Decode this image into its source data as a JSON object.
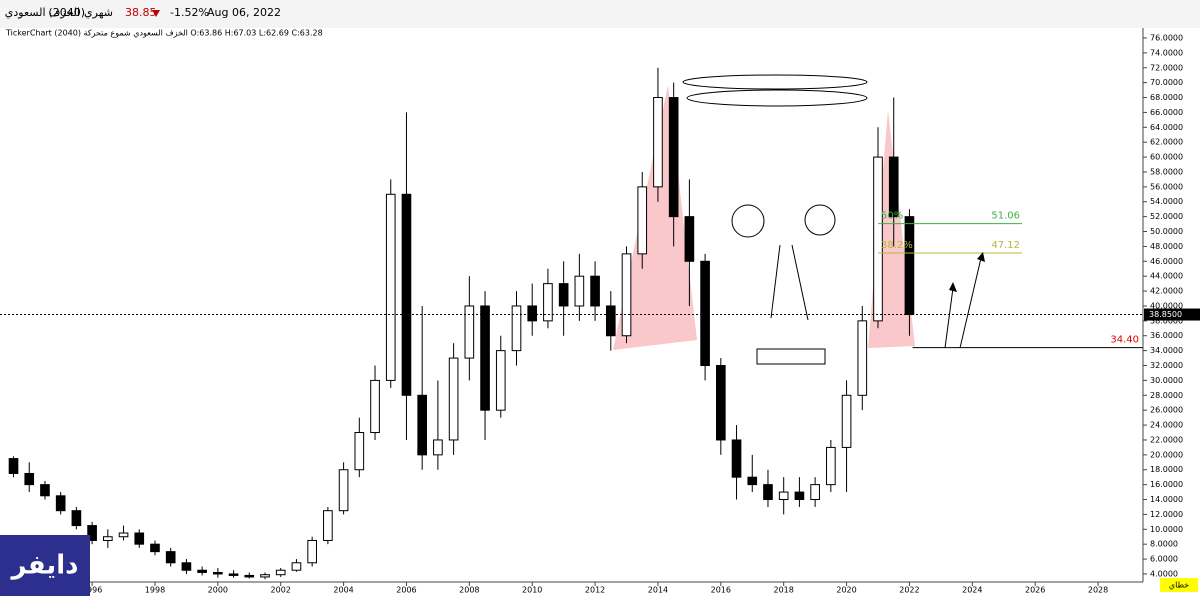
{
  "header": {
    "name": "الخزف السعودي",
    "code": "(2040)",
    "period": "شهري",
    "price": "38.85",
    "change": "-1.52%",
    "date": "Aug 06, 2022",
    "info": "TickerChart الخزف السعودي شموع متحركة (2040) O:63.86 H:67.03 L:62.69 C:63.28",
    "logo": "دايفر",
    "footer_button": "خطاي"
  },
  "chart_data": {
    "type": "candlestick",
    "x": [
      1993.5,
      1994,
      1994.5,
      1995,
      1995.5,
      1996,
      1996.5,
      1997,
      1997.5,
      1998,
      1998.5,
      1999,
      1999.5,
      2000,
      2000.5,
      2001,
      2001.5,
      2002,
      2002.5,
      2003,
      2003.5,
      2004,
      2004.5,
      2005,
      2005.5,
      2006,
      2006.5,
      2007,
      2007.5,
      2008,
      2008.5,
      2009,
      2009.5,
      2010,
      2010.5,
      2011,
      2011.5,
      2012,
      2012.5,
      2013,
      2013.5,
      2014,
      2014.5,
      2015,
      2015.5,
      2016,
      2016.5,
      2017,
      2017.5,
      2018,
      2018.5,
      2019,
      2019.5,
      2020,
      2020.5,
      2021,
      2021.5,
      2022
    ],
    "open": [
      19.5,
      17.5,
      16,
      14.5,
      12.5,
      10.5,
      8.5,
      9,
      9.5,
      8,
      7,
      5.5,
      4.5,
      4.2,
      4,
      3.8,
      3.6,
      3.9,
      4.5,
      5.5,
      8.5,
      12.5,
      18,
      23,
      30,
      55,
      28,
      20,
      22,
      33,
      40,
      26,
      34,
      40,
      38,
      43,
      40,
      44,
      40,
      36,
      47,
      56,
      68,
      52,
      46,
      32,
      22,
      17,
      16,
      14,
      15,
      14,
      16,
      21,
      28,
      38,
      60,
      52
    ],
    "high": [
      19.8,
      19,
      16.5,
      15,
      13,
      11,
      10,
      10.5,
      10,
      8.5,
      7.5,
      6,
      5,
      4.8,
      4.5,
      4.2,
      4.2,
      4.8,
      6,
      9,
      13,
      19,
      25,
      32,
      57,
      66,
      40,
      30,
      35,
      44,
      42,
      36,
      42,
      43,
      45,
      46,
      47,
      46,
      42,
      48,
      58,
      72,
      70,
      57,
      47,
      33,
      24,
      20,
      18,
      17,
      17,
      17,
      22,
      30,
      40,
      64,
      68,
      53
    ],
    "low": [
      17,
      15,
      14,
      12,
      10,
      8,
      7.5,
      8.5,
      7.5,
      6.5,
      5,
      4,
      3.8,
      3.5,
      3.5,
      3.4,
      3.3,
      3.6,
      4.3,
      5,
      8,
      12,
      17,
      22,
      29,
      22,
      18,
      18,
      20,
      30,
      22,
      25,
      32,
      36,
      37,
      36,
      38,
      38,
      34,
      35,
      45,
      54,
      48,
      40,
      30,
      20,
      14,
      15,
      13,
      12,
      13,
      13,
      15,
      15,
      26,
      37,
      48,
      36
    ],
    "close": [
      17.5,
      16,
      14.5,
      12.5,
      10.5,
      8.5,
      9,
      9.5,
      8,
      7,
      5.5,
      4.5,
      4.2,
      4,
      3.8,
      3.6,
      3.9,
      4.5,
      5.5,
      8.5,
      12.5,
      18,
      23,
      30,
      55,
      28,
      20,
      22,
      33,
      40,
      26,
      34,
      40,
      38,
      43,
      40,
      44,
      40,
      36,
      47,
      56,
      68,
      52,
      46,
      32,
      22,
      17,
      16,
      14,
      15,
      14,
      16,
      21,
      28,
      38,
      60,
      52,
      38.85
    ],
    "xlim": [
      1993.07,
      2029.43
    ],
    "ylim": [
      2.92,
      77.34
    ],
    "xticks": [
      1996,
      1998,
      2000,
      2002,
      2004,
      2006,
      2008,
      2010,
      2012,
      2014,
      2016,
      2018,
      2020,
      2022,
      2024,
      2026,
      2028
    ],
    "yticks": [
      {
        "value": 4,
        "label": "4.0000"
      },
      {
        "value": 6,
        "label": "6.0000"
      },
      {
        "value": 8,
        "label": "8.0000"
      },
      {
        "value": 10,
        "label": "10.0000"
      },
      {
        "value": 12,
        "label": "12.0000"
      },
      {
        "value": 14,
        "label": "14.0000"
      },
      {
        "value": 16,
        "label": "16.0000"
      },
      {
        "value": 18,
        "label": "18.0000"
      },
      {
        "value": 20,
        "label": "20.0000"
      },
      {
        "value": 22,
        "label": "22.0000"
      },
      {
        "value": 24,
        "label": "24.0000"
      },
      {
        "value": 26,
        "label": "26.0000"
      },
      {
        "value": 28,
        "label": "28.0000"
      },
      {
        "value": 30,
        "label": "30.0000"
      },
      {
        "value": 32,
        "label": "32.0000"
      },
      {
        "value": 34,
        "label": "34.0000"
      },
      {
        "value": 36,
        "label": "36.0000"
      },
      {
        "value": 38,
        "label": "38.0000"
      },
      {
        "value": 40,
        "label": "40.0000"
      },
      {
        "value": 42,
        "label": "42.0000"
      },
      {
        "value": 44,
        "label": "44.0000"
      },
      {
        "value": 46,
        "label": "46.0000"
      },
      {
        "value": 48,
        "label": "48.0000"
      },
      {
        "value": 50,
        "label": "50.0000"
      },
      {
        "value": 52,
        "label": "52.0000"
      },
      {
        "value": 54,
        "label": "54.0000"
      },
      {
        "value": 56,
        "label": "56.0000"
      },
      {
        "value": 58,
        "label": "58.0000"
      },
      {
        "value": 60,
        "label": "60.0000"
      },
      {
        "value": 62,
        "label": "62.0000"
      },
      {
        "value": 64,
        "label": "64.0000"
      },
      {
        "value": 66,
        "label": "66.0000"
      },
      {
        "value": 68,
        "label": "68.0000"
      },
      {
        "value": 70,
        "label": "70.0000"
      },
      {
        "value": 72,
        "label": "72.0000"
      },
      {
        "value": 74,
        "label": "74.0000"
      },
      {
        "value": 76,
        "label": "76.0000"
      }
    ],
    "price_line": {
      "value": 38.85,
      "label": "38.8500"
    },
    "support": {
      "value": 34.4,
      "label": "34.40"
    },
    "fib": [
      {
        "name": "50%",
        "value": 51.06
      },
      {
        "name": "38.2%",
        "value": 47.12
      }
    ],
    "up_color": "#ffffff",
    "down_color": "#000000"
  }
}
